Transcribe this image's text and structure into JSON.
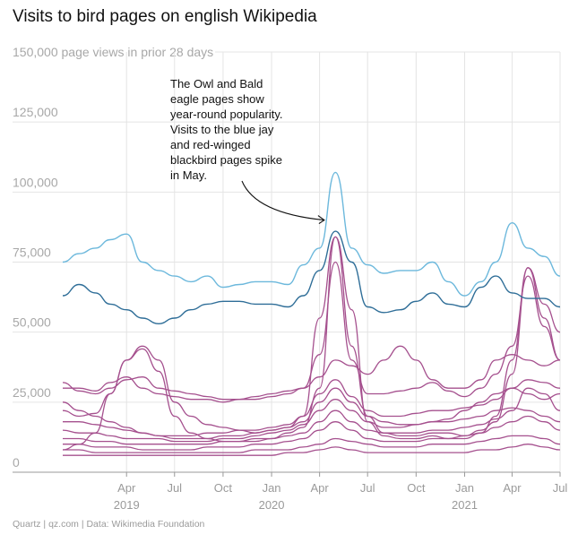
{
  "chart_data": {
    "type": "line",
    "title": "Visits to bird pages on english Wikipedia",
    "subtitle": "150,000 page views in prior 28 days",
    "source": "Quartz | qz.com | Data: Wikimedia Foundation",
    "ylim": [
      0,
      150000
    ],
    "y_ticks": [
      "0",
      "25,000",
      "50,000",
      "75,000",
      "100,000",
      "125,000"
    ],
    "y_tick_values": [
      0,
      25000,
      50000,
      75000,
      100000,
      125000
    ],
    "xlim": [
      "2018-12-01",
      "2021-07-01"
    ],
    "x_ticks": [
      {
        "label": "Apr",
        "year": "2019",
        "date": "2019-04-01"
      },
      {
        "label": "Jul",
        "year": "",
        "date": "2019-07-01"
      },
      {
        "label": "Oct",
        "year": "",
        "date": "2019-10-01"
      },
      {
        "label": "Jan",
        "year": "2020",
        "date": "2020-01-01"
      },
      {
        "label": "Apr",
        "year": "",
        "date": "2020-04-01"
      },
      {
        "label": "Jul",
        "year": "",
        "date": "2020-07-01"
      },
      {
        "label": "Oct",
        "year": "",
        "date": "2020-10-01"
      },
      {
        "label": "Jan",
        "year": "2021",
        "date": "2021-01-01"
      },
      {
        "label": "Apr",
        "year": "",
        "date": "2021-04-01"
      },
      {
        "label": "Jul",
        "year": "",
        "date": "2021-07-01"
      }
    ],
    "grid": true,
    "annotation": {
      "lines": [
        "The Owl and Bald",
        "eagle pages show",
        "year-round popularity.",
        "Visits to the blue jay",
        "and red-winged",
        "blackbird pages spike",
        "in May."
      ],
      "arrow_target_date": "2020-04-10",
      "arrow_target_value": 90000
    },
    "colors": {
      "light_blue": "#6cb8dc",
      "dark_blue": "#2f6e98",
      "purple": "#a5508e"
    },
    "x": [
      "2018-12-01",
      "2019-01-01",
      "2019-02-01",
      "2019-03-01",
      "2019-04-01",
      "2019-05-01",
      "2019-06-01",
      "2019-07-01",
      "2019-08-01",
      "2019-09-01",
      "2019-10-01",
      "2019-11-01",
      "2019-12-01",
      "2020-01-01",
      "2020-02-01",
      "2020-03-01",
      "2020-04-01",
      "2020-05-01",
      "2020-06-01",
      "2020-07-01",
      "2020-08-01",
      "2020-09-01",
      "2020-10-01",
      "2020-11-01",
      "2020-12-01",
      "2021-01-01",
      "2021-02-01",
      "2021-03-01",
      "2021-04-01",
      "2021-05-01",
      "2021-06-01",
      "2021-07-01"
    ],
    "series": [
      {
        "color": "light_blue",
        "values": [
          75000,
          78000,
          80000,
          83000,
          85000,
          75000,
          72000,
          70000,
          68000,
          70000,
          66000,
          67000,
          68000,
          68000,
          67000,
          74000,
          80000,
          107000,
          80000,
          74000,
          71000,
          72000,
          72000,
          75000,
          68000,
          63000,
          68000,
          75000,
          89000,
          80000,
          77000,
          70000
        ]
      },
      {
        "color": "dark_blue",
        "values": [
          63000,
          67000,
          64000,
          60000,
          58000,
          55000,
          53000,
          55000,
          58000,
          60000,
          61000,
          61000,
          60000,
          60000,
          59000,
          63000,
          72000,
          86000,
          75000,
          59000,
          57000,
          58000,
          61000,
          64000,
          60000,
          59000,
          66000,
          70000,
          64000,
          62000,
          62000,
          59000
        ]
      },
      {
        "color": "purple",
        "values": [
          30000,
          30000,
          29000,
          32000,
          34000,
          30000,
          28000,
          27000,
          26000,
          26000,
          25000,
          26000,
          26000,
          27000,
          28000,
          30000,
          42000,
          75000,
          40000,
          28000,
          28000,
          29000,
          30000,
          32000,
          29000,
          27000,
          30000,
          35000,
          45000,
          70000,
          52000,
          40000
        ]
      },
      {
        "color": "purple",
        "values": [
          22000,
          20000,
          21000,
          28000,
          40000,
          45000,
          40000,
          25000,
          20000,
          17000,
          16000,
          15000,
          14000,
          15000,
          16000,
          20000,
          55000,
          84000,
          45000,
          20000,
          14000,
          13000,
          13000,
          14000,
          14000,
          13000,
          15000,
          18000,
          35000,
          73000,
          60000,
          50000
        ]
      },
      {
        "color": "purple",
        "values": [
          8000,
          10000,
          14000,
          28000,
          40000,
          44000,
          36000,
          20000,
          14000,
          12000,
          11000,
          11000,
          11000,
          12000,
          14000,
          16000,
          30000,
          84000,
          58000,
          18000,
          13000,
          12000,
          12000,
          13000,
          12000,
          12000,
          14000,
          20000,
          40000,
          73000,
          55000,
          40000
        ]
      },
      {
        "color": "purple",
        "values": [
          32000,
          29000,
          28000,
          30000,
          33000,
          34000,
          30000,
          29000,
          28000,
          27000,
          26000,
          26000,
          27000,
          28000,
          29000,
          30000,
          34000,
          40000,
          38000,
          35000,
          40000,
          45000,
          40000,
          33000,
          30000,
          30000,
          33000,
          40000,
          42000,
          40000,
          38000,
          40000
        ]
      },
      {
        "color": "purple",
        "values": [
          25000,
          22000,
          20000,
          18000,
          16000,
          14000,
          13000,
          12000,
          12000,
          12000,
          13000,
          13000,
          14000,
          15000,
          16000,
          18000,
          25000,
          30000,
          25000,
          20000,
          18000,
          17000,
          17000,
          18000,
          19000,
          22000,
          25000,
          28000,
          30000,
          28000,
          26000,
          28000
        ]
      },
      {
        "color": "purple",
        "values": [
          18000,
          18000,
          17000,
          16000,
          15000,
          14000,
          13000,
          13000,
          13000,
          14000,
          14000,
          15000,
          15000,
          16000,
          17000,
          20000,
          28000,
          33000,
          27000,
          22000,
          20000,
          20000,
          21000,
          22000,
          22000,
          23000,
          24000,
          26000,
          30000,
          33000,
          32000,
          30000
        ]
      },
      {
        "color": "purple",
        "values": [
          15000,
          14000,
          14000,
          13000,
          12000,
          12000,
          12000,
          11000,
          11000,
          11000,
          12000,
          12000,
          13000,
          14000,
          15000,
          17000,
          22000,
          26000,
          22000,
          18000,
          16000,
          16000,
          17000,
          18000,
          18000,
          19000,
          20000,
          22000,
          23000,
          22000,
          20000,
          18000
        ]
      },
      {
        "color": "purple",
        "values": [
          12000,
          12000,
          11000,
          11000,
          10000,
          10000,
          10000,
          10000,
          10000,
          10000,
          11000,
          11000,
          12000,
          12000,
          13000,
          14000,
          18000,
          22000,
          18000,
          15000,
          14000,
          14000,
          14000,
          15000,
          15000,
          16000,
          17000,
          19000,
          22000,
          30000,
          28000,
          22000
        ]
      },
      {
        "color": "purple",
        "values": [
          10000,
          10000,
          9000,
          9000,
          9000,
          8000,
          8000,
          8000,
          8000,
          9000,
          9000,
          9000,
          10000,
          10000,
          11000,
          12000,
          15000,
          18000,
          15000,
          12000,
          11000,
          11000,
          11000,
          12000,
          12000,
          13000,
          14000,
          16000,
          18000,
          20000,
          18000,
          15000
        ]
      },
      {
        "color": "purple",
        "values": [
          8000,
          8000,
          7000,
          7000,
          7000,
          7000,
          7000,
          7000,
          7000,
          7000,
          7000,
          7000,
          8000,
          8000,
          8000,
          9000,
          10000,
          12000,
          11000,
          10000,
          9000,
          9000,
          9000,
          10000,
          10000,
          10000,
          11000,
          12000,
          13000,
          13000,
          12000,
          10000
        ]
      },
      {
        "color": "purple",
        "values": [
          6000,
          6000,
          6000,
          6000,
          6000,
          6000,
          6000,
          6000,
          6000,
          6000,
          6000,
          6000,
          6000,
          6000,
          7000,
          7000,
          8000,
          9000,
          8000,
          7000,
          7000,
          7000,
          7000,
          7000,
          7000,
          7000,
          8000,
          8000,
          9000,
          10000,
          9000,
          8000
        ]
      }
    ]
  }
}
